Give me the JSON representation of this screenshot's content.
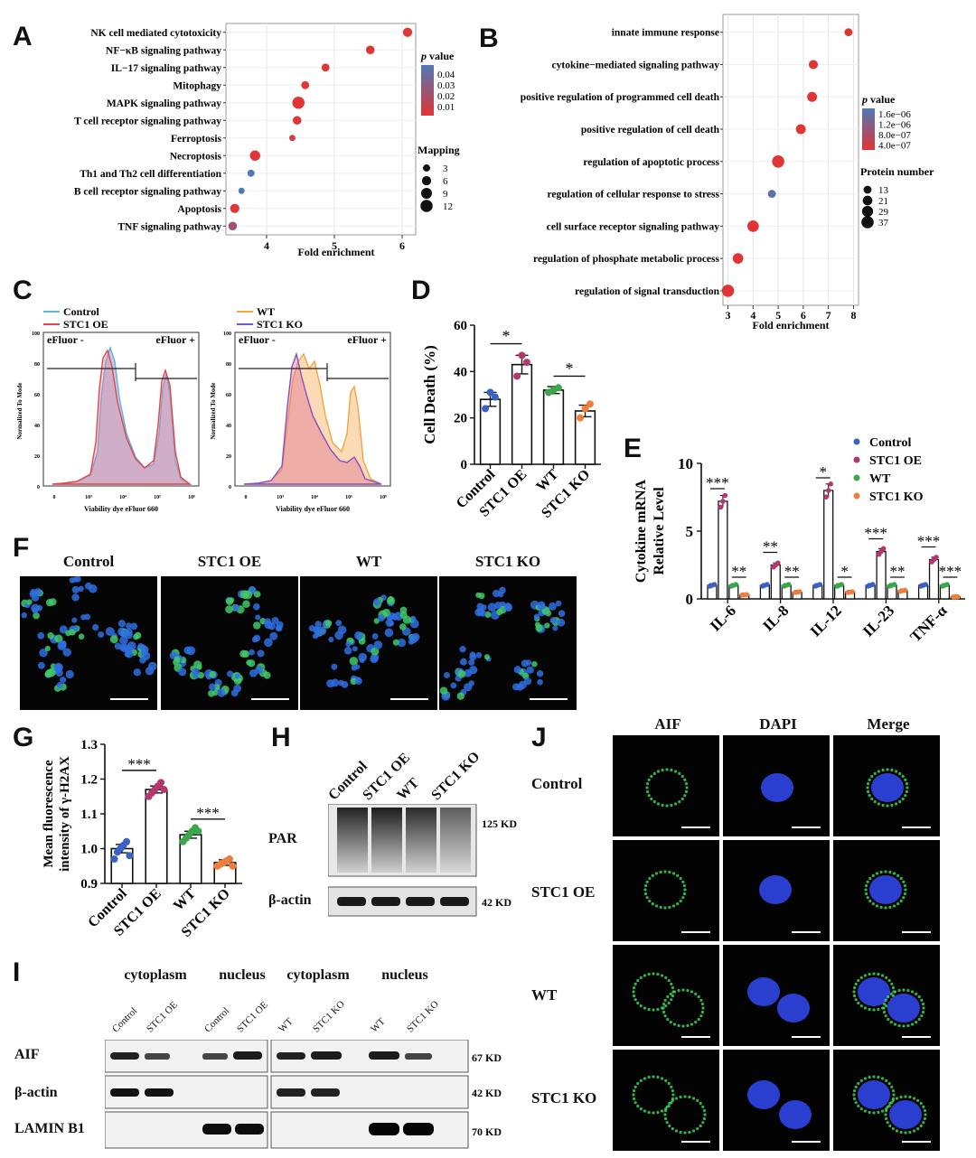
{
  "panels": {
    "A": "A",
    "B": "B",
    "C": "C",
    "D": "D",
    "E": "E",
    "F": "F",
    "G": "G",
    "H": "H",
    "I": "I",
    "J": "J"
  },
  "panelA": {
    "xlabel": "Fold enrichment",
    "xticks": [
      4,
      5,
      6
    ],
    "legend_p_title": "p value",
    "legend_p_label": "value",
    "legend_p_italic": "p",
    "legend_p_ticks": [
      "0.04",
      "0.03",
      "0.02",
      "0.01"
    ],
    "legend_size_title": "Mapping",
    "legend_size_ticks": [
      "3",
      "6",
      "9",
      "12"
    ],
    "colors": {
      "high": "#4f79b6",
      "low": "#e03535"
    },
    "chart_data": {
      "type": "scatter",
      "categories": [
        "NK cell mediated cytotoxicity",
        "NF−κB signaling pathway",
        "IL−17 signaling pathway",
        "Mitophagy",
        "MAPK signaling pathway",
        "T cell receptor signaling pathway",
        "Ferroptosis",
        "Necroptosis",
        "Th1 and Th2 cell differentiation",
        "B cell receptor signaling pathway",
        "Apoptosis",
        "TNF signaling pathway"
      ],
      "x": [
        6.08,
        5.53,
        4.87,
        4.57,
        4.47,
        4.45,
        4.38,
        3.83,
        3.77,
        3.63,
        3.53,
        3.5
      ],
      "size": [
        6,
        5,
        4,
        4,
        12,
        5,
        2,
        8,
        3,
        2,
        6,
        5
      ],
      "pvalue": [
        0.006,
        0.005,
        0.006,
        0.005,
        0.005,
        0.006,
        0.01,
        0.004,
        0.04,
        0.04,
        0.006,
        0.02
      ],
      "xlim": [
        3.4,
        6.2
      ]
    }
  },
  "panelB": {
    "xlabel": "Fold enrichment",
    "xticks": [
      3,
      4,
      5,
      6,
      7,
      8
    ],
    "legend_p_label": "value",
    "legend_p_italic": "p",
    "legend_p_ticks": [
      "1.6e−06",
      "1.2e−06",
      "8.0e−07",
      "4.0e−07"
    ],
    "legend_size_title": "Protein number",
    "legend_size_ticks": [
      "13",
      "21",
      "29",
      "37"
    ],
    "chart_data": {
      "type": "scatter",
      "categories": [
        "innate immune response",
        "cytokine−mediated signaling pathway",
        "positive regulation of programmed cell death",
        "positive regulation of cell death",
        "regulation of apoptotic process",
        "regulation of cellular response to stress",
        "cell surface receptor signaling pathway",
        "regulation of phosphate metabolic process",
        "regulation of signal transduction"
      ],
      "x": [
        7.8,
        6.4,
        6.35,
        5.9,
        5.0,
        4.75,
        4.0,
        3.4,
        3.0
      ],
      "size": [
        13,
        18,
        22,
        22,
        37,
        13,
        32,
        26,
        37
      ],
      "pvalue": [
        4e-07,
        4e-07,
        4e-07,
        4e-07,
        4e-07,
        1.6e-06,
        4e-07,
        4e-07,
        4e-07
      ],
      "xlim": [
        2.8,
        8.2
      ]
    }
  },
  "panelC": {
    "left_legend": [
      "Control",
      "STC1 OE"
    ],
    "right_legend": [
      "WT",
      "STC1 KO"
    ],
    "gate_neg": "eFluor -",
    "gate_pos": "eFluor +",
    "ylabel": "Normalized To Mode",
    "xlabel": "Viability dye eFluor 660",
    "yticks": [
      "100",
      "80",
      "60",
      "40",
      "20",
      "0"
    ],
    "xticks": [
      "0",
      "10³",
      "10⁴",
      "10⁵",
      "10⁶"
    ],
    "colors": {
      "control": "#5ab4e5",
      "oe": "#e3454a",
      "wt": "#f2a541",
      "ko": "#8a4fc0"
    }
  },
  "panelD": {
    "ylabel": "Cell Death (%)",
    "sig": [
      "*",
      "*"
    ],
    "chart_data": {
      "type": "bar",
      "categories": [
        "Control",
        "STC1 OE",
        "WT",
        "STC1 KO"
      ],
      "values": [
        28,
        43,
        32,
        23
      ],
      "errors": [
        3,
        4,
        1.5,
        2.5
      ],
      "points": [
        [
          24,
          31,
          29
        ],
        [
          38,
          47,
          44
        ],
        [
          31,
          32,
          33
        ],
        [
          20,
          24,
          26
        ]
      ],
      "point_colors": [
        "#3a62c4",
        "#b5376f",
        "#3aa84a",
        "#f07e3a"
      ],
      "ylim": [
        0,
        60
      ],
      "yticks": [
        0,
        20,
        40,
        60
      ]
    }
  },
  "panelE": {
    "ylabel_line1": "Cytokine mRNA",
    "ylabel_line2": "Relative Level",
    "legend": [
      "Control",
      "STC1 OE",
      "WT",
      "STC1 KO"
    ],
    "legend_colors": [
      "#3a62c4",
      "#b5376f",
      "#3aa84a",
      "#f07e3a"
    ],
    "sig": [
      [
        "***",
        "**"
      ],
      [
        "**",
        "**"
      ],
      [
        "*",
        "*"
      ],
      [
        "***",
        "**"
      ],
      [
        "***",
        "***"
      ]
    ],
    "chart_data": {
      "type": "bar",
      "categories": [
        "IL-6",
        "IL-8",
        "IL-12",
        "IL-23",
        "TNF-α"
      ],
      "series": [
        {
          "name": "Control",
          "values": [
            1,
            1,
            1,
            1,
            1
          ]
        },
        {
          "name": "STC1 OE",
          "values": [
            7.2,
            2.5,
            8,
            3.5,
            2.9
          ]
        },
        {
          "name": "WT",
          "values": [
            1,
            1,
            1,
            1,
            1
          ]
        },
        {
          "name": "STC1 KO",
          "values": [
            0.3,
            0.5,
            0.5,
            0.6,
            0.15
          ]
        }
      ],
      "ylim": [
        0,
        10
      ],
      "yticks": [
        0,
        5,
        10
      ]
    }
  },
  "panelF": {
    "labels": [
      "Control",
      "STC1 OE",
      "WT",
      "STC1 KO"
    ]
  },
  "panelG": {
    "ylabel_line1": "Mean fluorescence",
    "ylabel_line2": "intensity of γ-H2AX",
    "sig": [
      "***",
      "***"
    ],
    "chart_data": {
      "type": "bar",
      "categories": [
        "Control",
        "STC1 OE",
        "WT",
        "STC1 KO"
      ],
      "values": [
        1.0,
        1.17,
        1.04,
        0.96
      ],
      "errors": [
        0.012,
        0.01,
        0.01,
        0.008
      ],
      "points": [
        [
          0.97,
          0.99,
          1.0,
          1.01,
          1.02,
          0.98
        ],
        [
          1.15,
          1.16,
          1.17,
          1.18,
          1.19,
          1.17
        ],
        [
          1.02,
          1.03,
          1.04,
          1.05,
          1.06,
          1.05
        ],
        [
          0.95,
          0.955,
          0.96,
          0.965,
          0.97,
          0.95
        ]
      ],
      "point_colors": [
        "#3a62c4",
        "#b5376f",
        "#3aa84a",
        "#f07e3a"
      ],
      "ylim": [
        0.9,
        1.3
      ],
      "yticks": [
        "0.9",
        "1.0",
        "1.1",
        "1.2",
        "1.3"
      ]
    }
  },
  "panelH": {
    "lanes": [
      "Control",
      "STC1 OE",
      "WT",
      "STC1 KO"
    ],
    "rows": [
      "PAR",
      "β-actin"
    ],
    "sizes": [
      "125 KD",
      "42 KD"
    ]
  },
  "panelI": {
    "groups": [
      "cytoplasm",
      "nucleus",
      "cytoplasm",
      "nucleus"
    ],
    "lanes": [
      "Control",
      "STC1 OE",
      "Control",
      "STC1 OE",
      "WT",
      "STC1 KO",
      "WT",
      "STC1 KO"
    ],
    "rows": [
      "AIF",
      "β-actin",
      "LAMIN B1"
    ],
    "sizes": [
      "67 KD",
      "42 KD",
      "70 KD"
    ]
  },
  "panelJ": {
    "columns": [
      "AIF",
      "DAPI",
      "Merge"
    ],
    "rows": [
      "Control",
      "STC1 OE",
      "WT",
      "STC1 KO"
    ]
  }
}
